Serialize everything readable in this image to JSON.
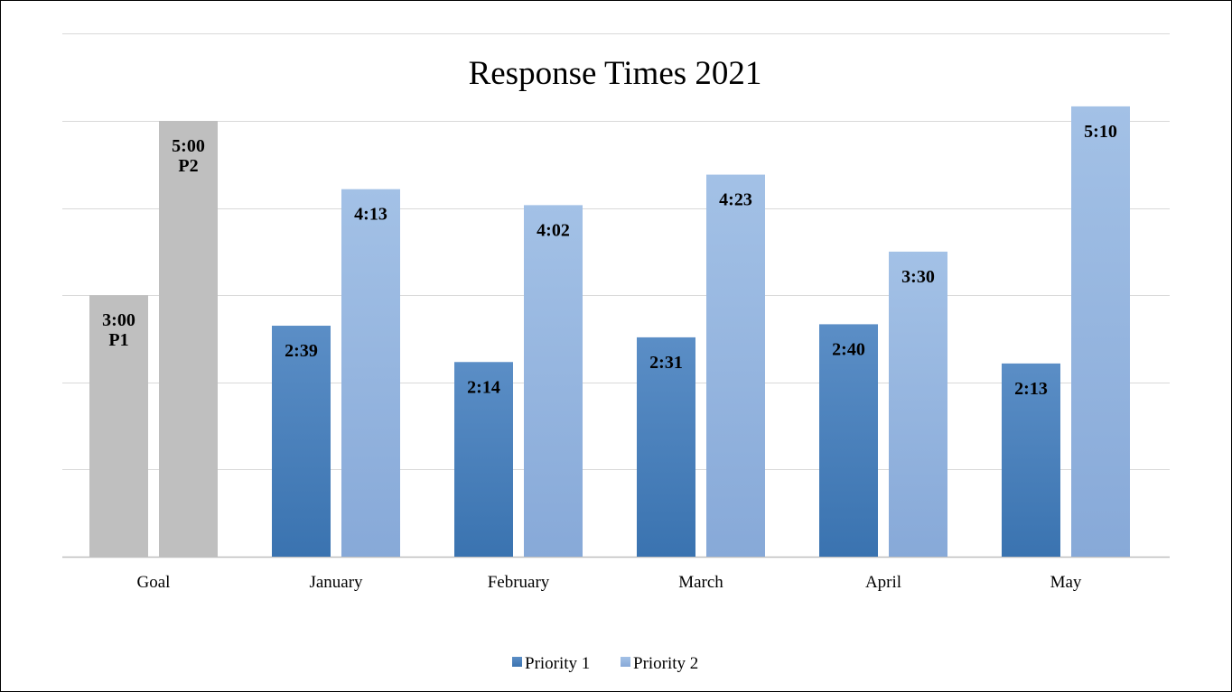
{
  "chart_data": {
    "type": "bar",
    "title": "Response Times 2021",
    "xlabel": "",
    "ylabel": "",
    "categories": [
      "Goal",
      "January",
      "February",
      "March",
      "April",
      "May"
    ],
    "series": [
      {
        "name": "Priority 1",
        "values": [
          180,
          159,
          134,
          151,
          160,
          133
        ],
        "data_labels": [
          "3:00\nP1",
          "2:39",
          "2:14",
          "2:31",
          "2:40",
          "2:13"
        ]
      },
      {
        "name": "Priority 2",
        "values": [
          300,
          253,
          242,
          263,
          210,
          310
        ],
        "data_labels": [
          "5:00\nP2",
          "4:13",
          "4:02",
          "4:23",
          "3:30",
          "5:10"
        ]
      }
    ],
    "ylim": [
      0,
      300
    ],
    "y_unit": "seconds",
    "gridlines": true,
    "y_axis_labels_shown": false,
    "legend": "bottom",
    "highlighted_category": "Goal",
    "colors": {
      "priority1_top": "#5b8ec6",
      "priority1_bottom": "#3a73b0",
      "priority2_top": "#a3c1e6",
      "priority2_bottom": "#87a9d8",
      "goal": "#bfbfbf",
      "grid": "#d9d9d9",
      "axis": "#bfbfbf"
    }
  }
}
